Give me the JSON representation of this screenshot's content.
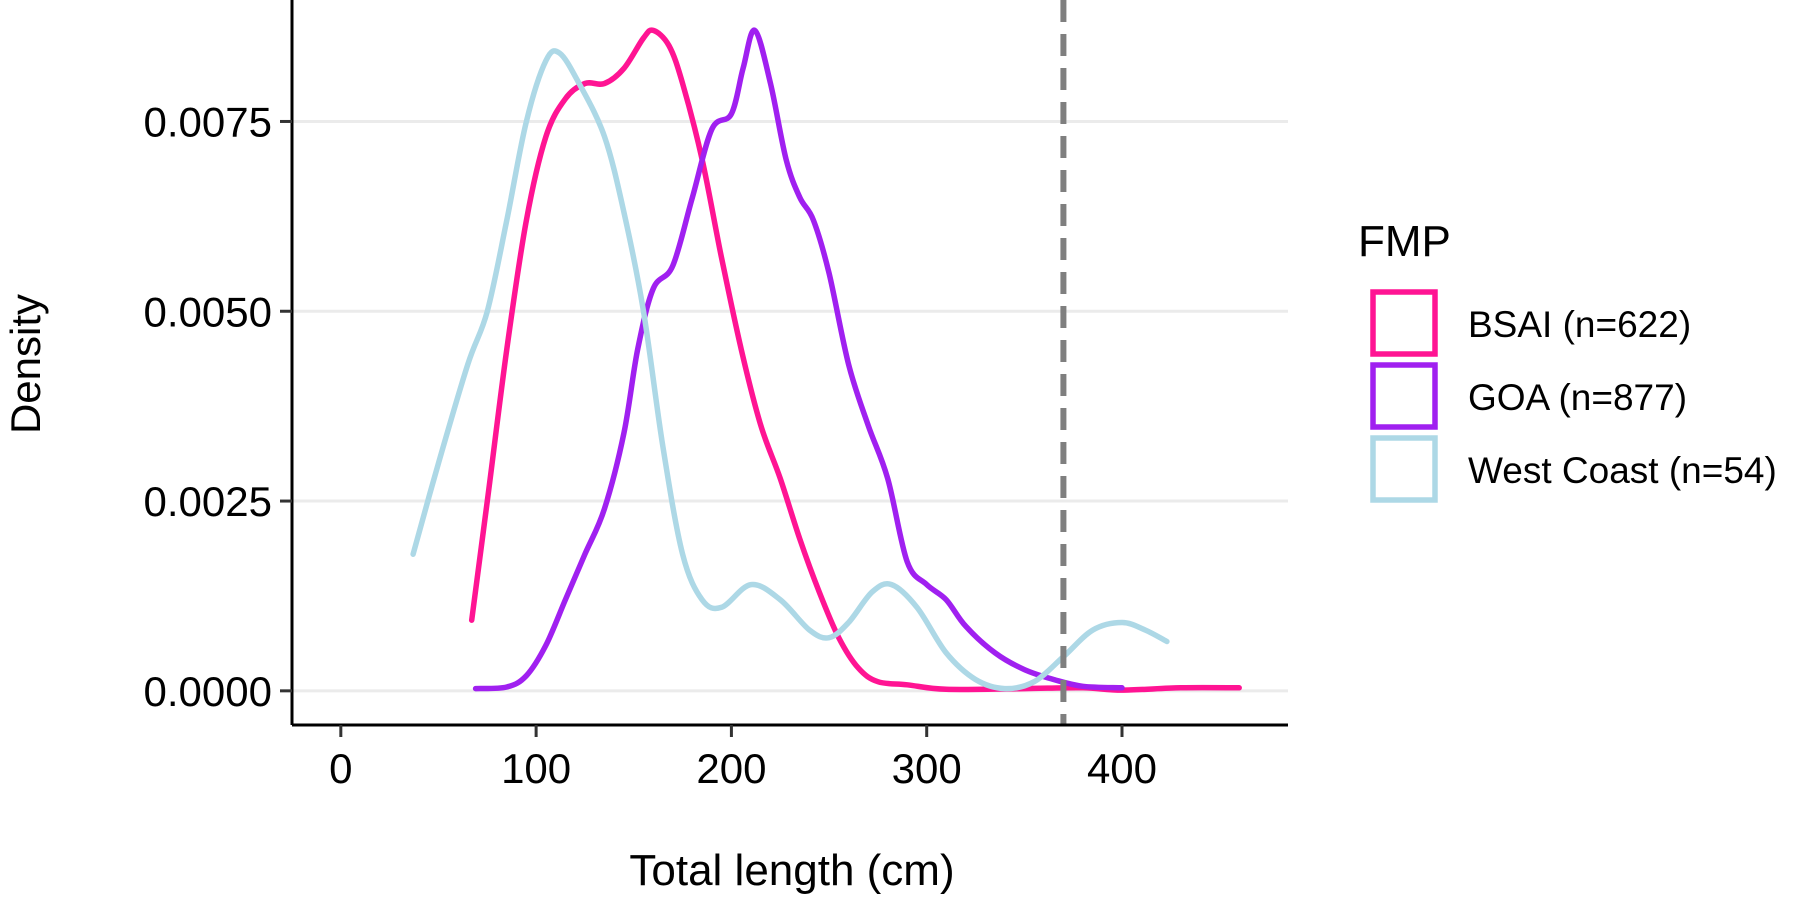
{
  "chart_data": {
    "type": "line",
    "title": "",
    "xlabel": "Total length (cm)",
    "ylabel": "Density",
    "xlim": [
      -25,
      485
    ],
    "ylim": [
      -0.00045,
      0.0091
    ],
    "x_ticks": [
      0,
      100,
      200,
      300,
      400
    ],
    "x_tick_labels": [
      "0",
      "100",
      "200",
      "300",
      "400"
    ],
    "y_ticks": [
      0,
      0.0025,
      0.005,
      0.0075
    ],
    "y_tick_labels": [
      "0.0000",
      "0.0025",
      "0.0050",
      "0.0075"
    ],
    "grid": "horizontal major",
    "reference_line": {
      "x": 370,
      "style": "dashed",
      "color": "#7f7f7f"
    },
    "legend": {
      "title": "FMP",
      "position": "right"
    },
    "series": [
      {
        "name": "BSAI (n=622)",
        "color": "#ff1493",
        "points": [
          [
            67,
            0.00093
          ],
          [
            75,
            0.0025
          ],
          [
            85,
            0.0045
          ],
          [
            95,
            0.0062
          ],
          [
            105,
            0.0073
          ],
          [
            115,
            0.0078
          ],
          [
            125,
            0.008
          ],
          [
            135,
            0.008
          ],
          [
            145,
            0.0082
          ],
          [
            155,
            0.0086
          ],
          [
            160,
            0.0087
          ],
          [
            168,
            0.0085
          ],
          [
            175,
            0.008
          ],
          [
            185,
            0.007
          ],
          [
            195,
            0.0057
          ],
          [
            205,
            0.0045
          ],
          [
            215,
            0.0035
          ],
          [
            225,
            0.0028
          ],
          [
            235,
            0.002
          ],
          [
            245,
            0.0013
          ],
          [
            255,
            0.0007
          ],
          [
            265,
            0.0003
          ],
          [
            275,
            0.00012
          ],
          [
            290,
            8e-05
          ],
          [
            310,
            2e-05
          ],
          [
            350,
            3e-05
          ],
          [
            380,
            4e-05
          ],
          [
            400,
            1e-05
          ],
          [
            430,
            4e-05
          ],
          [
            460,
            4e-05
          ]
        ]
      },
      {
        "name": "GOA (n=877)",
        "color": "#a020f0",
        "points": [
          [
            69,
            3e-05
          ],
          [
            85,
            5e-05
          ],
          [
            95,
            0.0002
          ],
          [
            105,
            0.0006
          ],
          [
            115,
            0.0012
          ],
          [
            125,
            0.0018
          ],
          [
            135,
            0.0024
          ],
          [
            145,
            0.0034
          ],
          [
            152,
            0.0045
          ],
          [
            160,
            0.0053
          ],
          [
            170,
            0.0056
          ],
          [
            180,
            0.0065
          ],
          [
            190,
            0.0074
          ],
          [
            200,
            0.0076
          ],
          [
            206,
            0.0082
          ],
          [
            212,
            0.0087
          ],
          [
            220,
            0.008
          ],
          [
            228,
            0.007
          ],
          [
            235,
            0.0065
          ],
          [
            242,
            0.0062
          ],
          [
            250,
            0.0055
          ],
          [
            260,
            0.0043
          ],
          [
            270,
            0.0035
          ],
          [
            280,
            0.0028
          ],
          [
            290,
            0.0017
          ],
          [
            300,
            0.0014
          ],
          [
            310,
            0.0012
          ],
          [
            320,
            0.00085
          ],
          [
            335,
            0.0005
          ],
          [
            350,
            0.00028
          ],
          [
            365,
            0.00015
          ],
          [
            380,
            6e-05
          ],
          [
            400,
            4e-05
          ]
        ]
      },
      {
        "name": "West Coast (n=54)",
        "color": "#add8e6",
        "points": [
          [
            37,
            0.0018
          ],
          [
            50,
            0.003
          ],
          [
            65,
            0.0043
          ],
          [
            75,
            0.005
          ],
          [
            85,
            0.0062
          ],
          [
            95,
            0.0075
          ],
          [
            105,
            0.0083
          ],
          [
            112,
            0.0084
          ],
          [
            122,
            0.008
          ],
          [
            135,
            0.0073
          ],
          [
            145,
            0.0063
          ],
          [
            155,
            0.005
          ],
          [
            165,
            0.0032
          ],
          [
            175,
            0.0018
          ],
          [
            185,
            0.0012
          ],
          [
            195,
            0.0011
          ],
          [
            210,
            0.0014
          ],
          [
            225,
            0.0012
          ],
          [
            240,
            0.0008
          ],
          [
            250,
            0.0007
          ],
          [
            260,
            0.0009
          ],
          [
            272,
            0.0013
          ],
          [
            282,
            0.0014
          ],
          [
            295,
            0.0011
          ],
          [
            310,
            0.0005
          ],
          [
            325,
            0.00015
          ],
          [
            340,
            3e-05
          ],
          [
            355,
            0.00012
          ],
          [
            370,
            0.00045
          ],
          [
            385,
            0.0008
          ],
          [
            400,
            0.0009
          ],
          [
            412,
            0.0008
          ],
          [
            423,
            0.00065
          ]
        ]
      }
    ]
  }
}
